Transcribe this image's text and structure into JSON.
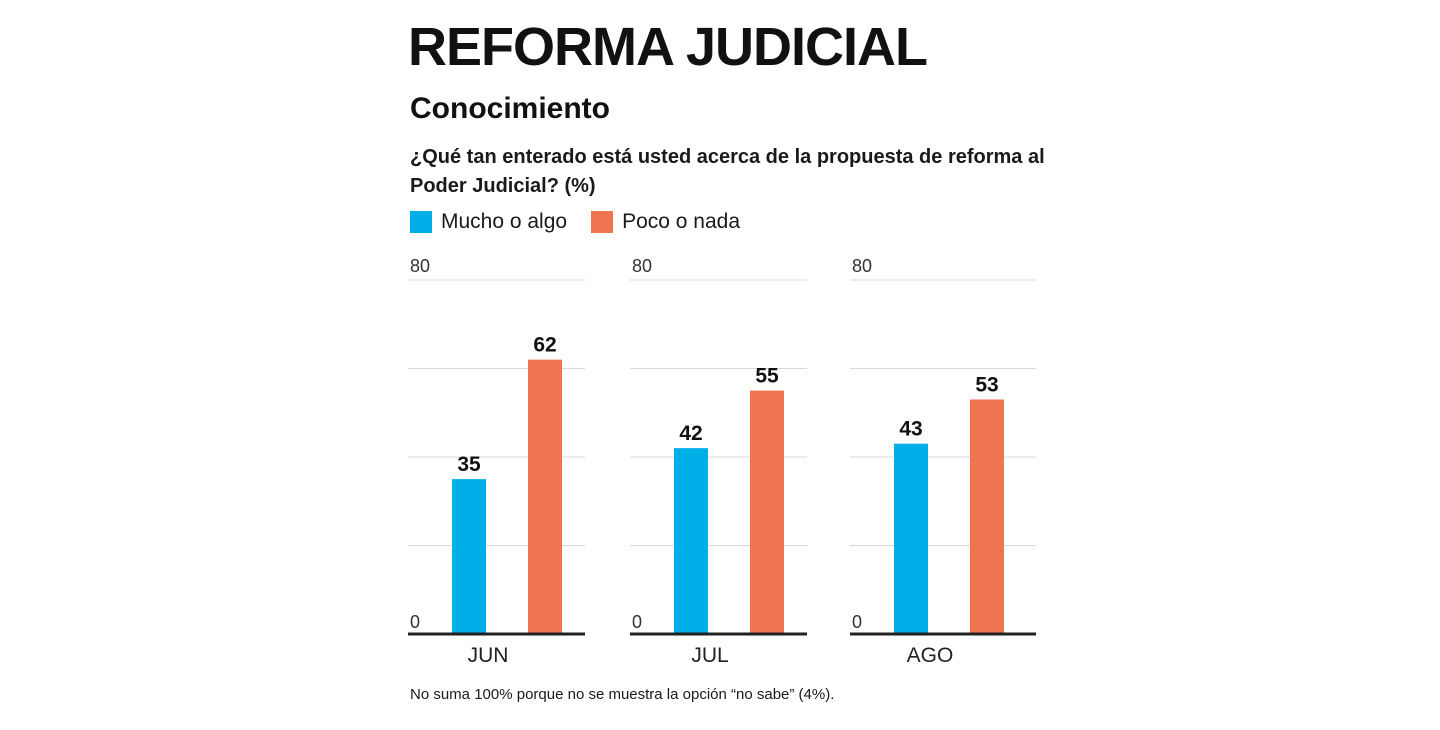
{
  "header": {
    "title": "REFORMA JUDICIAL",
    "subtitle": "Conocimiento",
    "question": "¿Qué tan enterado está usted acerca de la propuesta de reforma al Poder Judicial? (%)"
  },
  "colors": {
    "mucho": "#00aee8",
    "poco": "#ee7550",
    "gridline": "#d9d9d9",
    "baseline": "#222222"
  },
  "footnote": "No suma 100% porque no se muestra la opción “no sabe” (4%).",
  "chart_data": {
    "type": "bar",
    "title": "",
    "xlabel": "",
    "ylabel": "",
    "ylim": [
      0,
      80
    ],
    "yticks_shown": [
      "0",
      "80"
    ],
    "grid": true,
    "legend_position": "top-left",
    "categories": [
      "JUN",
      "JUL",
      "AGO"
    ],
    "series": [
      {
        "name": "Mucho o algo",
        "values": [
          35,
          42,
          43
        ]
      },
      {
        "name": "Poco o nada",
        "values": [
          62,
          55,
          53
        ]
      }
    ]
  }
}
